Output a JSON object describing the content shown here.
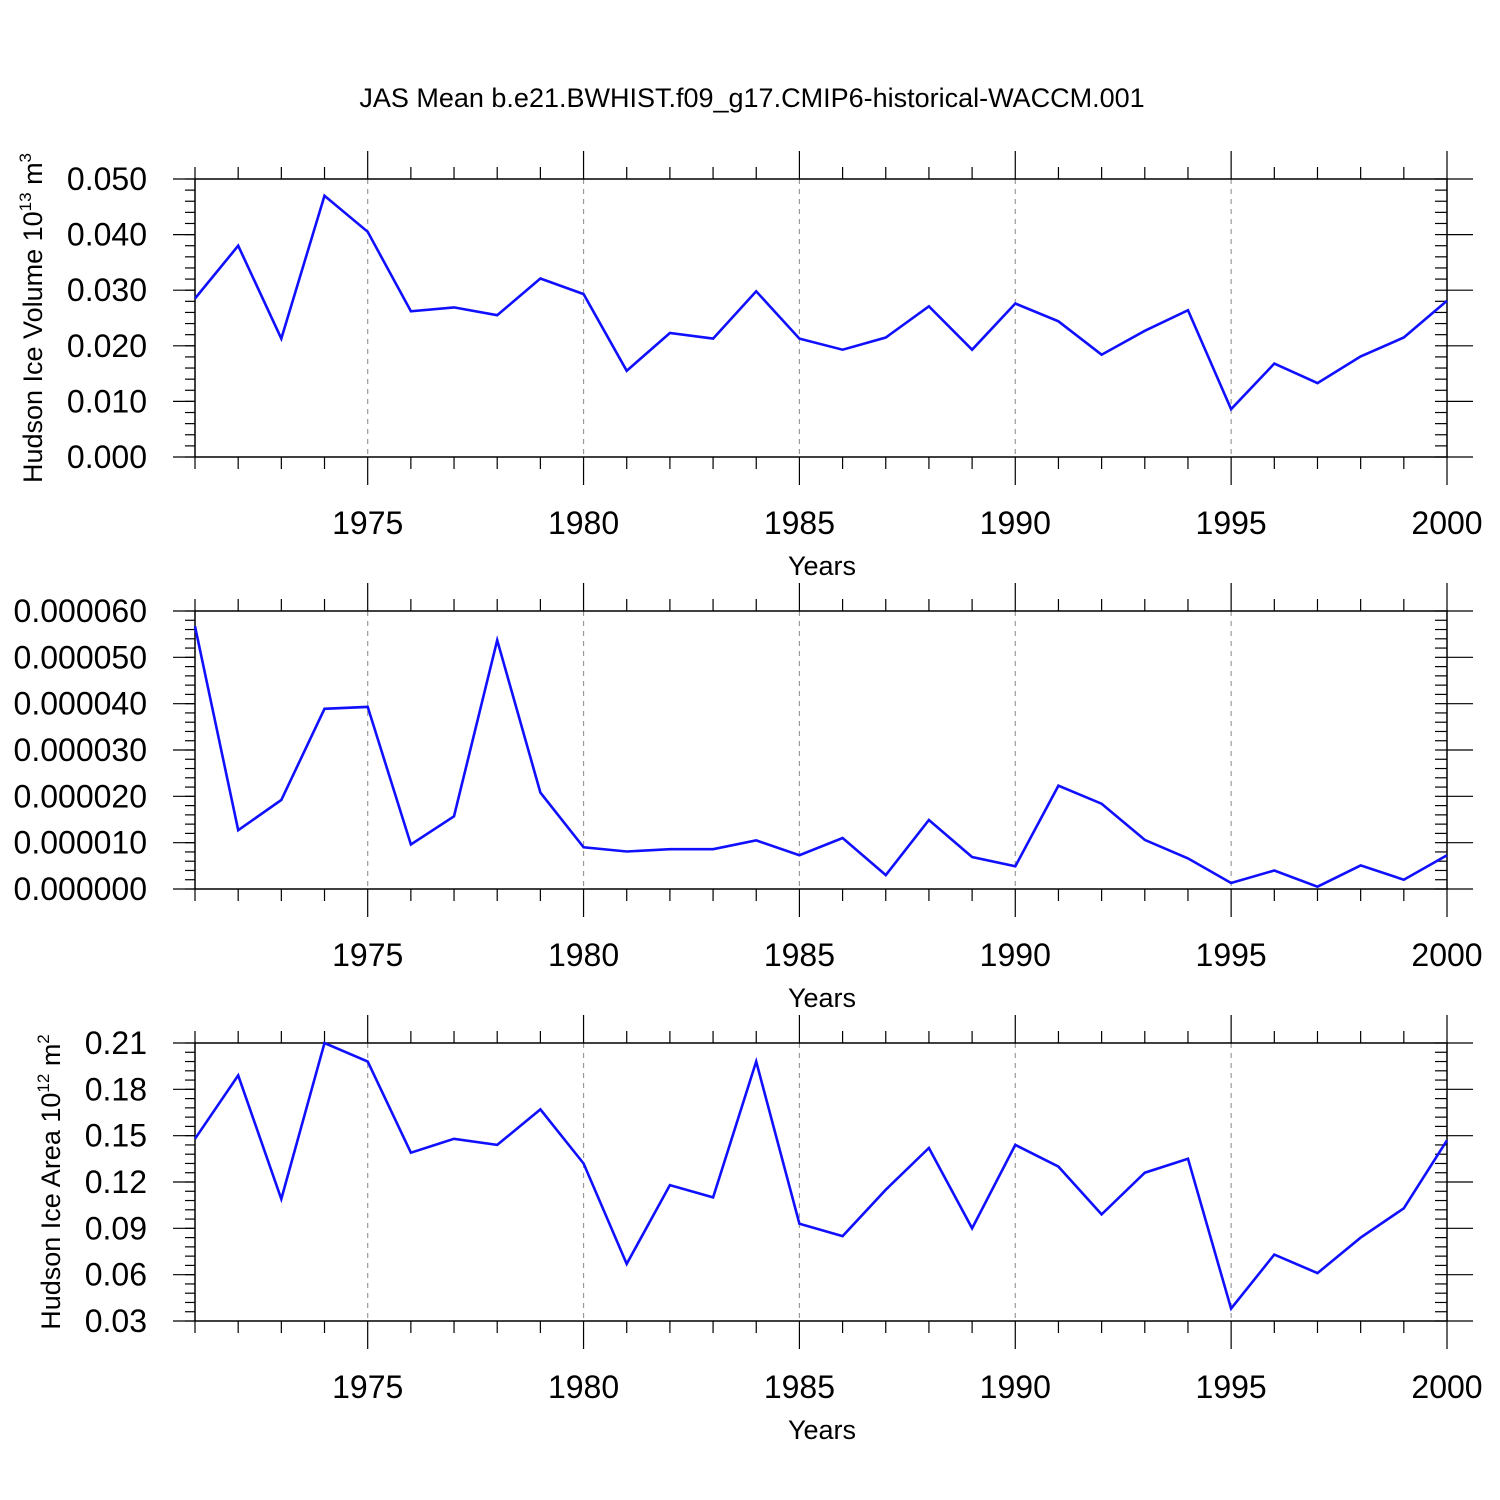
{
  "figure": {
    "title": "JAS Mean b.e21.BWHIST.f09_g17.CMIP6-historical-WACCM.001"
  },
  "chart_data": [
    {
      "type": "line",
      "id": "volume",
      "title": "JAS Mean b.e21.BWHIST.f09_g17.CMIP6-historical-WACCM.001",
      "xlabel": "Years",
      "ylabel": {
        "base": "Hudson Ice Volume 10",
        "exp": "13",
        "unit": " m",
        "unit_exp": "3"
      },
      "xlim": [
        1971,
        2000
      ],
      "ylim": [
        0.0,
        0.05
      ],
      "x_ticks": [
        1975,
        1980,
        1985,
        1990,
        1995,
        2000
      ],
      "x_tick_labels": [
        "1975",
        "1980",
        "1985",
        "1990",
        "1995",
        "2000"
      ],
      "y_ticks": [
        0.0,
        0.01,
        0.02,
        0.03,
        0.04,
        0.05
      ],
      "y_tick_labels": [
        "0.000",
        "0.010",
        "0.020",
        "0.030",
        "0.040",
        "0.050"
      ],
      "y_minor_step": 0.002,
      "grid": "vertical dashed at major x ticks",
      "series": [
        {
          "name": "volume",
          "color": "#1010ff",
          "x": [
            1971,
            1972,
            1973,
            1974,
            1975,
            1976,
            1977,
            1978,
            1979,
            1980,
            1981,
            1982,
            1983,
            1984,
            1985,
            1986,
            1987,
            1988,
            1989,
            1990,
            1991,
            1992,
            1993,
            1994,
            1995,
            1996,
            1997,
            1998,
            1999,
            2000
          ],
          "values": [
            0.0285,
            0.038,
            0.0213,
            0.047,
            0.0405,
            0.0262,
            0.0269,
            0.0255,
            0.0321,
            0.0293,
            0.0155,
            0.0223,
            0.0213,
            0.0298,
            0.0213,
            0.0193,
            0.0215,
            0.0271,
            0.0193,
            0.0276,
            0.0244,
            0.0184,
            0.0227,
            0.0264,
            0.0086,
            0.0168,
            0.0133,
            0.0181,
            0.0215,
            0.0281
          ]
        }
      ]
    },
    {
      "type": "line",
      "id": "middle",
      "title": "",
      "xlabel": "Years",
      "ylabel": null,
      "xlim": [
        1971,
        2000
      ],
      "ylim": [
        0.0,
        6e-05
      ],
      "x_ticks": [
        1975,
        1980,
        1985,
        1990,
        1995,
        2000
      ],
      "x_tick_labels": [
        "1975",
        "1980",
        "1985",
        "1990",
        "1995",
        "2000"
      ],
      "y_ticks": [
        0.0,
        1e-05,
        2e-05,
        3e-05,
        4e-05,
        5e-05,
        6e-05
      ],
      "y_tick_labels": [
        "0.000000",
        "0.000010",
        "0.000020",
        "0.000030",
        "0.000040",
        "0.000050",
        "0.000060"
      ],
      "y_minor_step": 2e-06,
      "grid": "vertical dashed at major x ticks",
      "series": [
        {
          "name": "middle",
          "color": "#1010ff",
          "x": [
            1971,
            1972,
            1973,
            1974,
            1975,
            1976,
            1977,
            1978,
            1979,
            1980,
            1981,
            1982,
            1983,
            1984,
            1985,
            1986,
            1987,
            1988,
            1989,
            1990,
            1991,
            1992,
            1993,
            1994,
            1995,
            1996,
            1997,
            1998,
            1999,
            2000
          ],
          "values": [
            5.67e-05,
            1.27e-05,
            1.92e-05,
            3.89e-05,
            3.93e-05,
            9.6e-06,
            1.57e-05,
            5.37e-05,
            2.08e-05,
            9e-06,
            8.1e-06,
            8.6e-06,
            8.6e-06,
            1.05e-05,
            7.3e-06,
            1.1e-05,
            3e-06,
            1.49e-05,
            6.9e-06,
            4.9e-06,
            2.23e-05,
            1.84e-05,
            1.06e-05,
            6.6e-06,
            1.3e-06,
            4e-06,
            5e-07,
            5.1e-06,
            2e-06,
            7.3e-06
          ]
        }
      ]
    },
    {
      "type": "line",
      "id": "area",
      "title": "",
      "xlabel": "Years",
      "ylabel": {
        "base": "Hudson Ice Area 10",
        "exp": "12",
        "unit": " m",
        "unit_exp": "2"
      },
      "xlim": [
        1971,
        2000
      ],
      "ylim": [
        0.03,
        0.21
      ],
      "x_ticks": [
        1975,
        1980,
        1985,
        1990,
        1995,
        2000
      ],
      "x_tick_labels": [
        "1975",
        "1980",
        "1985",
        "1990",
        "1995",
        "2000"
      ],
      "y_ticks": [
        0.03,
        0.06,
        0.09,
        0.12,
        0.15,
        0.18,
        0.21
      ],
      "y_tick_labels": [
        "0.03",
        "0.06",
        "0.09",
        "0.12",
        "0.15",
        "0.18",
        "0.21"
      ],
      "y_minor_step": 0.006,
      "grid": "vertical dashed at major x ticks",
      "series": [
        {
          "name": "area",
          "color": "#1010ff",
          "x": [
            1971,
            1972,
            1973,
            1974,
            1975,
            1976,
            1977,
            1978,
            1979,
            1980,
            1981,
            1982,
            1983,
            1984,
            1985,
            1986,
            1987,
            1988,
            1989,
            1990,
            1991,
            1992,
            1993,
            1994,
            1995,
            1996,
            1997,
            1998,
            1999,
            2000
          ],
          "values": [
            0.148,
            0.189,
            0.109,
            0.21,
            0.198,
            0.139,
            0.148,
            0.144,
            0.167,
            0.132,
            0.067,
            0.118,
            0.11,
            0.198,
            0.093,
            0.085,
            0.115,
            0.142,
            0.09,
            0.144,
            0.13,
            0.099,
            0.126,
            0.135,
            0.038,
            0.073,
            0.061,
            0.084,
            0.103,
            0.147
          ]
        }
      ]
    }
  ]
}
